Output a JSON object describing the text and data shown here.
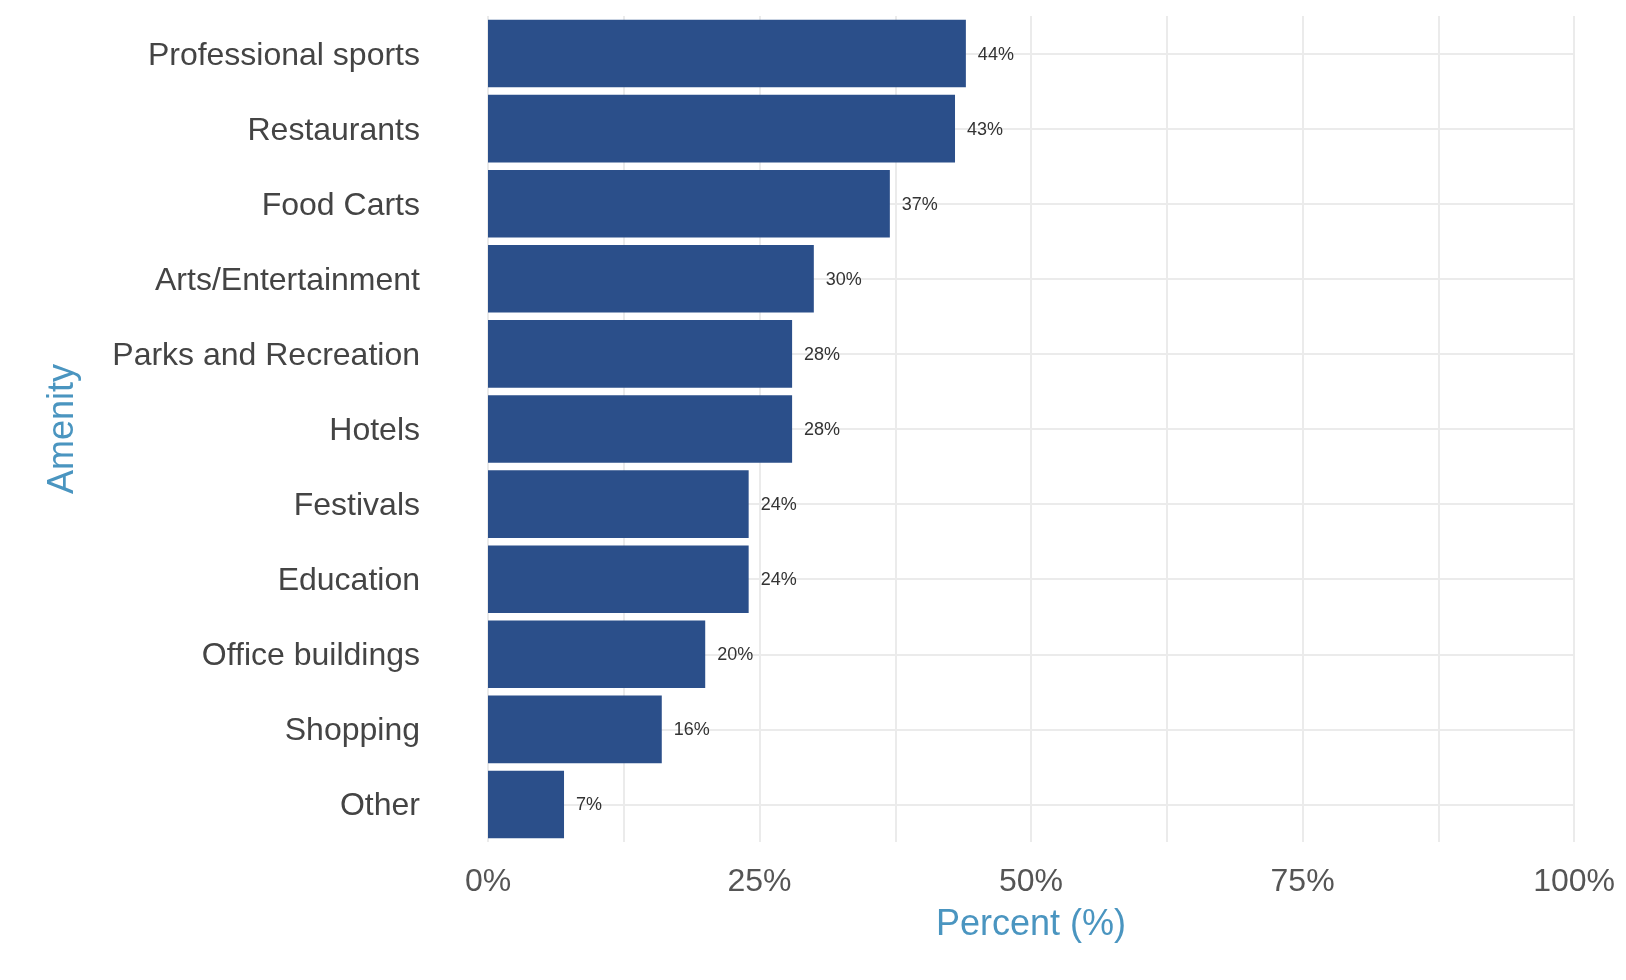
{
  "chart_data": {
    "type": "bar",
    "orientation": "horizontal",
    "xlabel": "Percent (%)",
    "ylabel": "Amenity",
    "categories": [
      "Professional sports",
      "Restaurants",
      "Food Carts",
      "Arts/Entertainment",
      "Parks and Recreation",
      "Hotels",
      "Festivals",
      "Education",
      "Office buildings",
      "Shopping",
      "Other"
    ],
    "values": [
      44,
      43,
      37,
      30,
      28,
      28,
      24,
      24,
      20,
      16,
      7
    ],
    "value_labels": [
      "44%",
      "43%",
      "37%",
      "30%",
      "28%",
      "28%",
      "24%",
      "24%",
      "20%",
      "16%",
      "7%"
    ],
    "color": "#2b4f8a",
    "xlim": [
      0,
      100
    ],
    "xticks": [
      {
        "value": 0,
        "label": "0%"
      },
      {
        "value": 12.5,
        "label": null
      },
      {
        "value": 25,
        "label": "25%"
      },
      {
        "value": 37.5,
        "label": null
      },
      {
        "value": 50,
        "label": "50%"
      },
      {
        "value": 62.5,
        "label": null
      },
      {
        "value": 75,
        "label": "75%"
      },
      {
        "value": 87.5,
        "label": null
      },
      {
        "value": 100,
        "label": "100%"
      }
    ],
    "grid": true
  }
}
